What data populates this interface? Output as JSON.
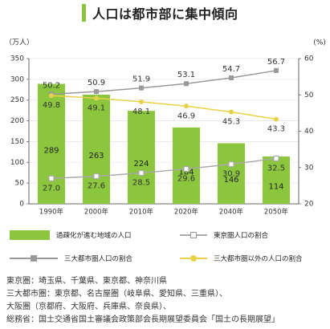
{
  "title": "人口は都市部に集中傾向",
  "chart_data": {
    "type": "bar+line",
    "categories": [
      "1990年",
      "2000年",
      "2010年",
      "2020年",
      "2040年",
      "2050年"
    ],
    "left_axis": {
      "unit": "（万人）",
      "min": 0,
      "max": 350,
      "ticks": [
        0,
        50,
        100,
        150,
        200,
        250,
        300,
        350
      ]
    },
    "right_axis": {
      "unit": "(%)",
      "min": 20,
      "max": 60,
      "ticks": [
        20,
        30,
        40,
        50,
        60
      ]
    },
    "bars": {
      "name": "過疎化が進む地域の人口",
      "values": [
        289,
        263,
        224,
        184,
        146,
        114
      ],
      "color": "#8cc63f"
    },
    "lines": [
      {
        "name": "三大都市圏人口の割合",
        "values": [
          50.2,
          50.9,
          51.9,
          53.1,
          54.7,
          56.7
        ],
        "color": "#999999",
        "marker": "square-filled",
        "labels": [
          "50.2",
          "50.9",
          "51.9",
          "53.1",
          "54.7",
          "56.7"
        ]
      },
      {
        "name": "三大都市圏以外の人口の割合",
        "values": [
          49.8,
          49.1,
          48.1,
          46.9,
          45.3,
          43.3
        ],
        "color": "#e8d24a",
        "marker": "circle",
        "labels": [
          "49.8",
          "49.1",
          "48.1",
          "46.9",
          "45.3",
          "43.3"
        ]
      },
      {
        "name": "東京圏人口の割合",
        "values": [
          27.0,
          27.6,
          28.5,
          29.6,
          30.9,
          32.5
        ],
        "color": "#aaaaaa",
        "marker": "square-open",
        "labels": [
          "27.0",
          "27.6",
          "28.5",
          "29.6",
          "30.9",
          "32.5"
        ]
      }
    ]
  },
  "legend": {
    "bar": "過疎化が進む地域の人口",
    "tokyo": "東京圏人口の割合",
    "three": "三大都市圏人口の割合",
    "other": "三大都市圏以外の人口の割合"
  },
  "notes": [
    "東京圏：埼玉県、千葉県、東京都、神奈川県",
    "三大都市圏：東京都、名古屋圏（岐阜県、愛知県、三重県）、",
    "大阪圏（京都府、大阪府、兵庫県、奈良県）、",
    "総務省：国土交通省国土審議会政策部会長期展望委員会「国土の長期展望」"
  ]
}
